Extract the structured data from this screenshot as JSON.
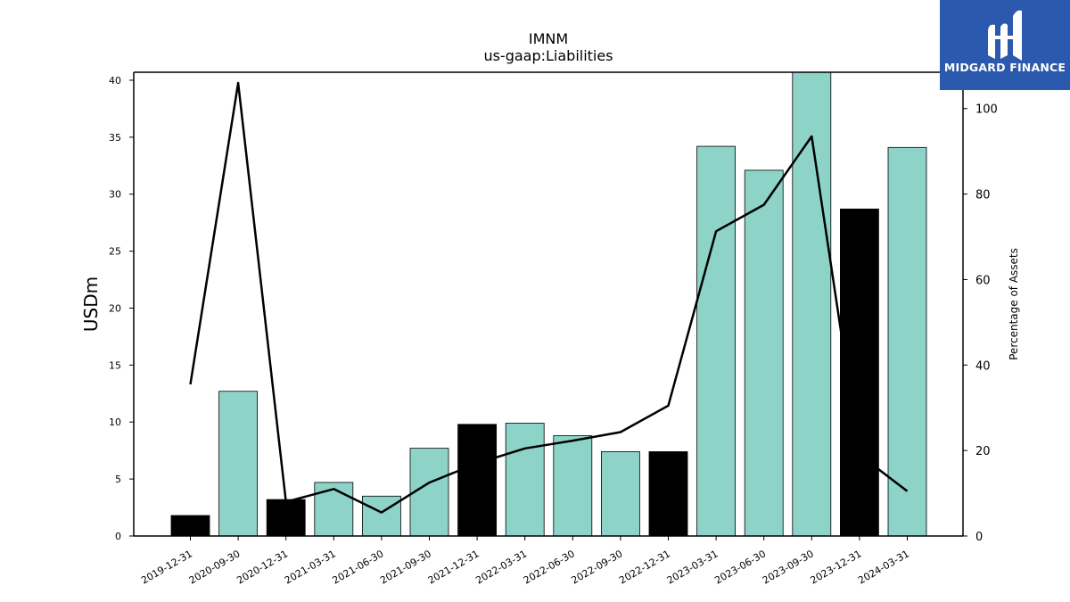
{
  "brand": {
    "name": "MIDGARD FINANCE",
    "logo_icon": "midgard-finance-logo-icon",
    "background_color": "#2b59ad"
  },
  "chart_data": {
    "type": "bar",
    "title": "IMNM",
    "subtitle": "us-gaap:Liabilities",
    "ylabel": "USDm",
    "y2label": "Percentage of Assets",
    "ylim": [
      0,
      40.7
    ],
    "y2lim": [
      0,
      108.5
    ],
    "yticks": [
      0,
      5,
      10,
      15,
      20,
      25,
      30,
      35,
      40
    ],
    "y2ticks": [
      0,
      20,
      40,
      60,
      80,
      100
    ],
    "grid": false,
    "categories": [
      "2019-12-31",
      "2020-09-30",
      "2020-12-31",
      "2021-03-31",
      "2021-06-30",
      "2021-09-30",
      "2021-12-31",
      "2022-03-31",
      "2022-06-30",
      "2022-09-30",
      "2022-12-31",
      "2023-03-31",
      "2023-06-30",
      "2023-09-30",
      "2023-12-31",
      "2024-03-31"
    ],
    "series": [
      {
        "type": "bar",
        "axis": "left",
        "values": [
          1.8,
          12.7,
          3.2,
          4.7,
          3.5,
          7.7,
          9.8,
          9.9,
          8.8,
          7.4,
          7.4,
          34.2,
          32.1,
          40.7,
          28.7,
          34.1
        ],
        "colors": [
          "#000000",
          "#8dd3c7",
          "#000000",
          "#8dd3c7",
          "#8dd3c7",
          "#8dd3c7",
          "#000000",
          "#8dd3c7",
          "#8dd3c7",
          "#8dd3c7",
          "#000000",
          "#8dd3c7",
          "#8dd3c7",
          "#8dd3c7",
          "#000000",
          "#8dd3c7"
        ]
      },
      {
        "type": "line",
        "axis": "right",
        "color": "#000000",
        "values": [
          35.5,
          106.0,
          8.0,
          11.0,
          5.5,
          12.5,
          17.0,
          20.5,
          22.3,
          24.3,
          30.5,
          71.3,
          77.5,
          93.5,
          19.0,
          10.5
        ]
      }
    ]
  }
}
